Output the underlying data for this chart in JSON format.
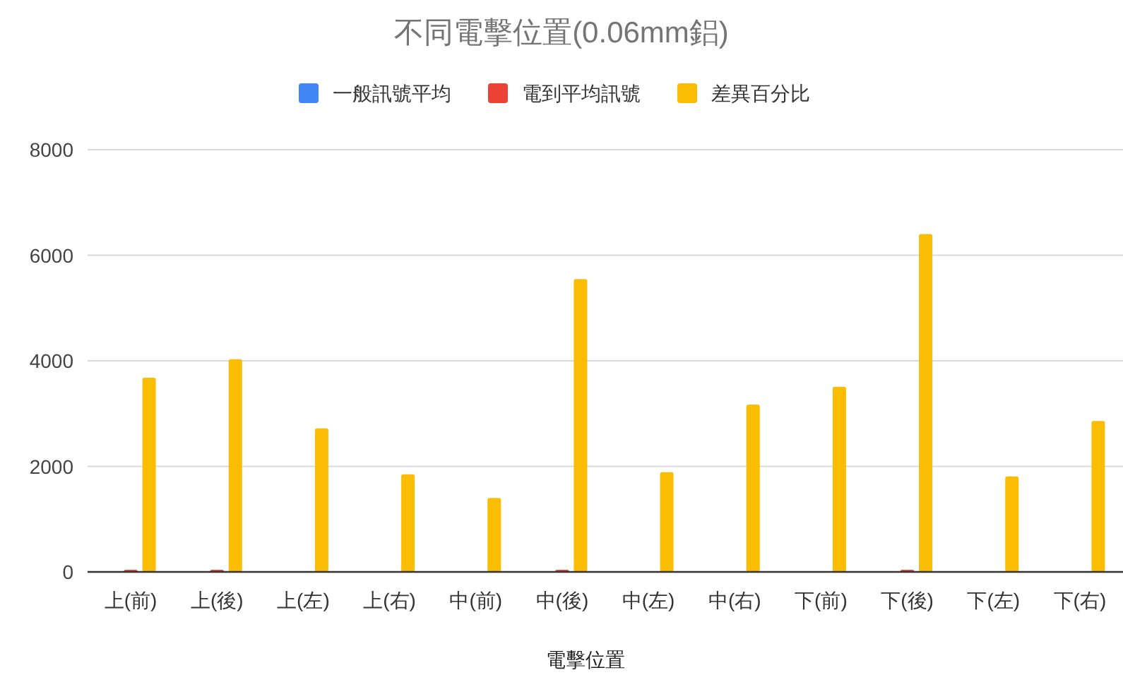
{
  "chart_data": {
    "type": "bar",
    "title": "不同電擊位置(0.06mm鋁)",
    "xlabel": "電擊位置",
    "categories": [
      "上(前)",
      "上(後)",
      "上(左)",
      "上(右)",
      "中(前)",
      "中(後)",
      "中(左)",
      "中(右)",
      "下(前)",
      "下(後)",
      "下(左)",
      "下(右)"
    ],
    "series": [
      {
        "name": "一般訊號平均",
        "color": "#4285f4",
        "values": [
          0,
          0,
          0,
          0,
          0,
          0,
          0,
          0,
          0,
          0,
          0,
          0
        ]
      },
      {
        "name": "電到平均訊號",
        "color": "#ea4335",
        "values": [
          40,
          40,
          0,
          0,
          0,
          40,
          0,
          0,
          0,
          40,
          0,
          0
        ]
      },
      {
        "name": "差異百分比",
        "color": "#fbbc04",
        "values": [
          3680,
          4030,
          2720,
          1850,
          1400,
          5550,
          1890,
          3170,
          3510,
          6400,
          1810,
          2860
        ]
      }
    ],
    "ylim": [
      0,
      8000
    ],
    "yticks": [
      0,
      2000,
      4000,
      6000,
      8000
    ],
    "grid": "y",
    "legend": "top"
  }
}
